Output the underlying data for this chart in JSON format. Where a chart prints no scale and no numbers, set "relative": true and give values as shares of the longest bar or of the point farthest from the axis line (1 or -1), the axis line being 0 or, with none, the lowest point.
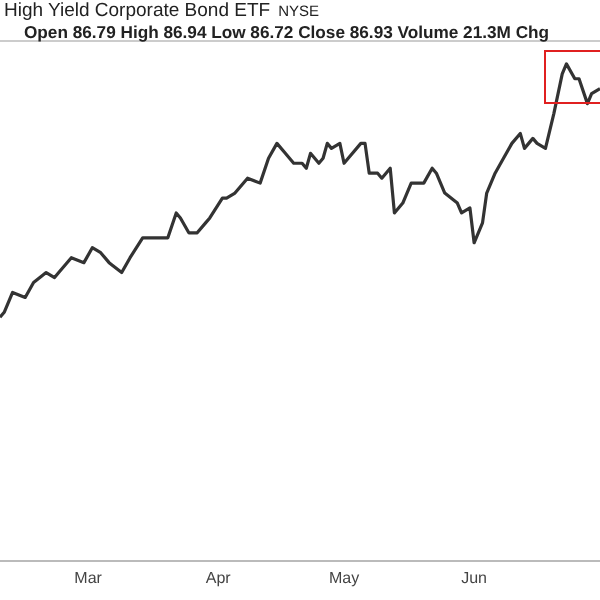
{
  "chart_data": {
    "type": "line",
    "title": "High Yield Corporate Bond ETF",
    "subtitle": "Open 86.79 High 86.94 Low 86.72 Close 86.93 Volume 21.3M Chg",
    "annotations": [
      "NYSE"
    ],
    "relative": true,
    "marker": "none",
    "x": [
      "--02-08",
      "--02-09",
      "--02-11",
      "--02-14",
      "--02-16",
      "--02-19",
      "--02-21",
      "--02-22",
      "--02-25",
      "--02-28",
      "--03-02",
      "--03-04",
      "--03-06",
      "--03-09",
      "--03-11",
      "--03-14",
      "--03-16",
      "--03-17",
      "--03-20",
      "--03-22",
      "--03-23",
      "--03-25",
      "--03-27",
      "--03-29",
      "--03-30",
      "--04-02",
      "--04-03",
      "--04-05",
      "--04-08",
      "--04-11",
      "--04-13",
      "--04-15",
      "--04-17",
      "--04-19",
      "--04-21",
      "--04-22",
      "--04-23",
      "--04-25",
      "--04-26",
      "--04-27",
      "--04-28",
      "--04-30",
      "--05-01",
      "--05-02",
      "--05-05",
      "--05-06",
      "--05-07",
      "--05-09",
      "--05-10",
      "--05-12",
      "--05-13",
      "--05-15",
      "--05-17",
      "--05-20",
      "--05-22",
      "--05-23",
      "--05-25",
      "--05-28",
      "--05-29",
      "--05-31",
      "--06-01",
      "--06-03",
      "--06-04",
      "--06-06",
      "--06-08",
      "--06-10",
      "--06-12",
      "--06-13",
      "--06-15",
      "--06-16",
      "--06-18",
      "--06-20",
      "--06-22",
      "--06-23",
      "--06-25",
      "--06-26",
      "--06-28",
      "--06-29",
      "--07-01"
    ],
    "xlim": [
      "--02-08",
      "--07-01"
    ],
    "xticks": [
      {
        "value": "--03-01",
        "label": "Mar"
      },
      {
        "value": "--04-01",
        "label": "Apr"
      },
      {
        "value": "--05-01",
        "label": "May"
      },
      {
        "value": "--06-01",
        "label": "Jun"
      }
    ],
    "series": [
      {
        "color": "#333333",
        "values": [
          0.49,
          0.5,
          0.54,
          0.53,
          0.56,
          0.58,
          0.57,
          0.58,
          0.61,
          0.6,
          0.63,
          0.62,
          0.6,
          0.58,
          0.61,
          0.65,
          0.65,
          0.65,
          0.65,
          0.7,
          0.69,
          0.66,
          0.66,
          0.68,
          0.69,
          0.73,
          0.73,
          0.74,
          0.77,
          0.76,
          0.81,
          0.84,
          0.82,
          0.8,
          0.8,
          0.79,
          0.82,
          0.8,
          0.81,
          0.84,
          0.83,
          0.84,
          0.8,
          0.81,
          0.84,
          0.84,
          0.78,
          0.78,
          0.77,
          0.79,
          0.7,
          0.72,
          0.76,
          0.76,
          0.79,
          0.78,
          0.74,
          0.72,
          0.7,
          0.71,
          0.64,
          0.68,
          0.74,
          0.78,
          0.81,
          0.84,
          0.86,
          0.83,
          0.85,
          0.84,
          0.83,
          0.9,
          0.98,
          1,
          0.97,
          0.97,
          0.92,
          0.94,
          0.95
        ]
      }
    ]
  }
}
